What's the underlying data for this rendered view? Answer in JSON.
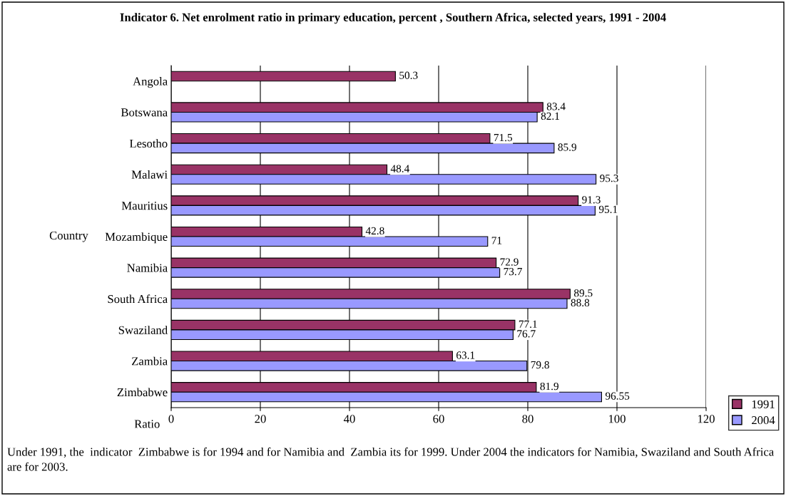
{
  "chart_data": {
    "type": "bar",
    "orientation": "horizontal",
    "title": "Indicator 6. Net enrolment ratio in primary education, percent , Southern Africa, selected years, 1991 - 2004",
    "ylabel": "Country",
    "xlabel": "Ratio",
    "categories": [
      "Angola",
      "Botswana",
      "Lesotho",
      "Malawi",
      "Mauritius",
      "Mozambique",
      "Namibia",
      "South Africa",
      "Swaziland",
      "Zambia",
      "Zimbabwe"
    ],
    "series": [
      {
        "name": "1991",
        "color": "#993366",
        "values": [
          50.3,
          83.4,
          71.5,
          48.4,
          91.3,
          42.8,
          72.9,
          89.5,
          77.1,
          63.1,
          81.9
        ]
      },
      {
        "name": "2004",
        "color": "#9999ff",
        "values": [
          null,
          82.1,
          85.9,
          95.3,
          95.1,
          71,
          73.7,
          88.8,
          76.7,
          79.8,
          96.55
        ]
      }
    ],
    "xlim": [
      0,
      120
    ],
    "xticks": [
      0,
      20,
      40,
      60,
      80,
      100,
      120
    ],
    "grid": "x",
    "legend": "bottom right",
    "data_labels": true,
    "annotations": [
      "Under 1991, the  indicator  Zimbabwe is for 1994 and for Namibia and  Zambia its for 1999. Under 2004 the indicators for Namibia, Swaziland and South Africa are for 2003."
    ]
  }
}
